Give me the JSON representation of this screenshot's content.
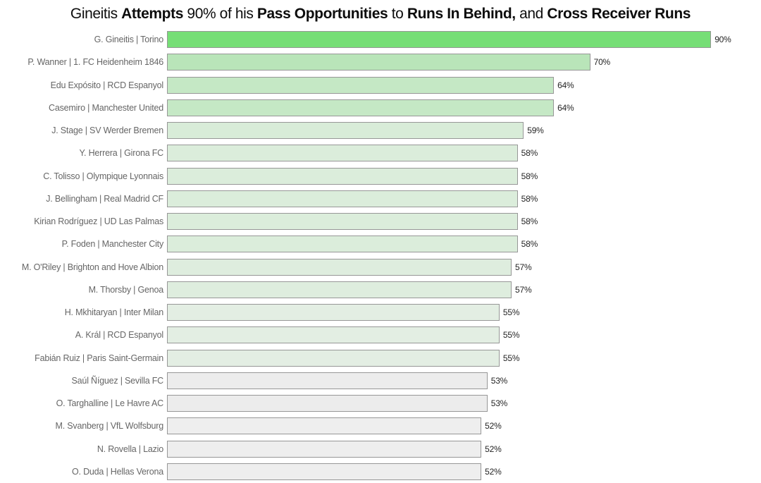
{
  "title": {
    "full_text": "Gineitis Attempts 90% of his Pass Opportunities to Runs In Behind, and Cross Receiver Runs",
    "segments": [
      {
        "text": "Gineitis ",
        "bold": false
      },
      {
        "text": "Attempts",
        "bold": true
      },
      {
        "text": " 90% of his ",
        "bold": false
      },
      {
        "text": "Pass Opportunities",
        "bold": true
      },
      {
        "text": " to ",
        "bold": false
      },
      {
        "text": "Runs In Behind,",
        "bold": true
      },
      {
        "text": " and ",
        "bold": false
      },
      {
        "text": "Cross Receiver Runs",
        "bold": true
      }
    ]
  },
  "chart_data": {
    "type": "bar",
    "orientation": "horizontal",
    "title": "Gineitis Attempts 90% of his Pass Opportunities to Runs In Behind, and Cross Receiver Runs",
    "xlabel": "",
    "ylabel": "",
    "xlim": [
      0,
      100
    ],
    "value_suffix": "%",
    "grid": false,
    "legend": false,
    "bar_border_color": "#979797",
    "label_color": "#666666",
    "value_label_color": "#242424",
    "categories": [
      "G. Gineitis | Torino",
      "P. Wanner | 1. FC Heidenheim 1846",
      "Edu Expósito | RCD Espanyol",
      "Casemiro | Manchester United",
      "J. Stage | SV Werder Bremen",
      "Y. Herrera | Girona FC",
      "C. Tolisso | Olympique Lyonnais",
      "J. Bellingham | Real Madrid CF",
      "Kirian Rodríguez | UD Las Palmas",
      "P. Foden | Manchester City",
      "M. O'Riley | Brighton and Hove Albion",
      "M. Thorsby | Genoa",
      "H. Mkhitaryan | Inter Milan",
      "A. Král | RCD Espanyol",
      "Fabián Ruiz | Paris Saint-Germain",
      "Saúl Ñíguez | Sevilla FC",
      "O. Targhalline | Le Havre AC",
      "M. Svanberg | VfL Wolfsburg",
      "N. Rovella | Lazio",
      "O. Duda | Hellas Verona"
    ],
    "values": [
      90,
      70,
      64,
      64,
      59,
      58,
      58,
      58,
      58,
      58,
      57,
      57,
      55,
      55,
      55,
      53,
      53,
      52,
      52,
      52
    ],
    "rows": [
      {
        "label": "G. Gineitis | Torino",
        "value": 90,
        "display": "90%",
        "color": "#76DE76"
      },
      {
        "label": "P. Wanner | 1. FC Heidenheim 1846",
        "value": 70,
        "display": "70%",
        "color": "#B9E5B9"
      },
      {
        "label": "Edu Expósito | RCD Espanyol",
        "value": 64,
        "display": "64%",
        "color": "#C5E8C5"
      },
      {
        "label": "Casemiro | Manchester United",
        "value": 64,
        "display": "64%",
        "color": "#C5E8C5"
      },
      {
        "label": "J. Stage | SV Werder Bremen",
        "value": 59,
        "display": "59%",
        "color": "#D8ECD8"
      },
      {
        "label": "Y. Herrera | Girona FC",
        "value": 58,
        "display": "58%",
        "color": "#DBEDDB"
      },
      {
        "label": "C. Tolisso | Olympique Lyonnais",
        "value": 58,
        "display": "58%",
        "color": "#DBEDDB"
      },
      {
        "label": "J. Bellingham | Real Madrid CF",
        "value": 58,
        "display": "58%",
        "color": "#DBEDDB"
      },
      {
        "label": "Kirian Rodríguez | UD Las Palmas",
        "value": 58,
        "display": "58%",
        "color": "#DBEDDB"
      },
      {
        "label": "P. Foden | Manchester City",
        "value": 58,
        "display": "58%",
        "color": "#DBEDDB"
      },
      {
        "label": "M. O'Riley | Brighton and Hove Albion",
        "value": 57,
        "display": "57%",
        "color": "#DEEDDE"
      },
      {
        "label": "M. Thorsby | Genoa",
        "value": 57,
        "display": "57%",
        "color": "#DEEDDE"
      },
      {
        "label": "H. Mkhitaryan | Inter Milan",
        "value": 55,
        "display": "55%",
        "color": "#E3EEE3"
      },
      {
        "label": "A. Král | RCD Espanyol",
        "value": 55,
        "display": "55%",
        "color": "#E3EEE3"
      },
      {
        "label": "Fabián Ruiz | Paris Saint-Germain",
        "value": 55,
        "display": "55%",
        "color": "#E3EEE3"
      },
      {
        "label": "Saúl Ñíguez | Sevilla FC",
        "value": 53,
        "display": "53%",
        "color": "#ECECEC"
      },
      {
        "label": "O. Targhalline | Le Havre AC",
        "value": 53,
        "display": "53%",
        "color": "#ECECEC"
      },
      {
        "label": "M. Svanberg | VfL Wolfsburg",
        "value": 52,
        "display": "52%",
        "color": "#EEEEEE"
      },
      {
        "label": "N. Rovella | Lazio",
        "value": 52,
        "display": "52%",
        "color": "#EEEEEE"
      },
      {
        "label": "O. Duda | Hellas Verona",
        "value": 52,
        "display": "52%",
        "color": "#EEEEEE"
      }
    ]
  }
}
